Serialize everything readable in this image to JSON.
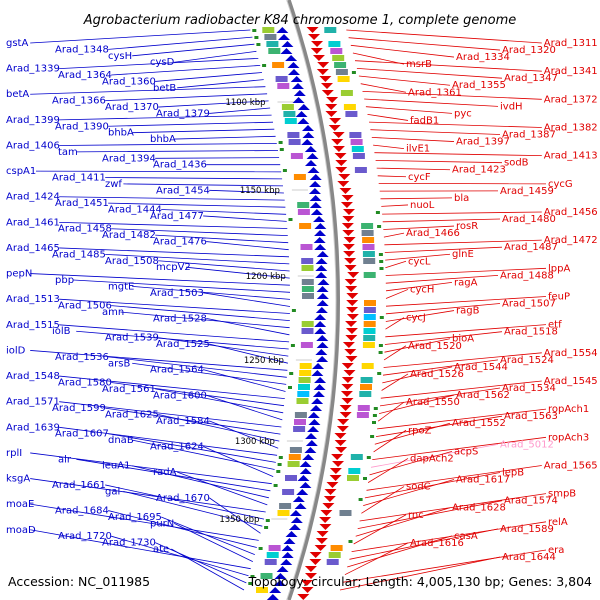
{
  "title": "Agrobacterium radiobacter K84 chromosome 1, complete genome",
  "footer": {
    "accession": "Accession: NC_011985",
    "summary": "Topology: circular; Length: 4,005,130 bp; Genes: 3,804"
  },
  "colors": {
    "minus_strand": "#0000cc",
    "plus_strand": "#e00000",
    "highlight_gene": "#ff99cc",
    "backbone": "#888888",
    "marker": "#228b22"
  },
  "ticks": [
    "1100 kbp",
    "1150 kbp",
    "1200 kbp",
    "1250 kbp",
    "1300 kbp",
    "1350 kbp"
  ],
  "left_labels": [
    "gstA",
    "Arad_1348",
    "cysH",
    "cysD",
    "Arad_1339",
    "Arad_1364",
    "Arad_1360",
    "betB",
    "betA",
    "Arad_1366",
    "Arad_1370",
    "Arad_1379",
    "Arad_1399",
    "Arad_1390",
    "bhbA",
    "bhbA",
    "Arad_1406",
    "tam",
    "Arad_1394",
    "Arad_1436",
    "cspA1",
    "Arad_1411",
    "zwf",
    "Arad_1454",
    "Arad_1424",
    "Arad_1451",
    "Arad_1444",
    "Arad_1477",
    "Arad_1461",
    "Arad_1458",
    "Arad_1482",
    "Arad_1476",
    "Arad_1465",
    "Arad_1485",
    "Arad_1508",
    "mcpV2",
    "pepN",
    "pbp",
    "mgtE",
    "Arad_1503",
    "Arad_1513",
    "Arad_1506",
    "amn",
    "Arad_1528",
    "Arad_1515",
    "iolB",
    "Arad_1539",
    "Arad_1525",
    "iolD",
    "Arad_1536",
    "arsB",
    "Arad_1564",
    "Arad_1548",
    "Arad_1580",
    "Arad_1561",
    "Arad_1600",
    "Arad_1571",
    "Arad_1599",
    "Arad_1625",
    "Arad_1584",
    "Arad_1639",
    "Arad_1607",
    "dnaB",
    "Arad_1624",
    "rplI",
    "alr",
    "leuA1",
    "radA",
    "ksgA",
    "Arad_1661",
    "gal",
    "Arad_1670",
    "moaE",
    "Arad_1684",
    "Arad_1695",
    "purN",
    "moaD",
    "Arad_1720",
    "Arad_1730",
    "ate"
  ],
  "right_labels": [
    "Arad_1311",
    "Arad_1320",
    "Arad_1334",
    "msrB",
    "Arad_1341",
    "Arad_1347",
    "Arad_1355",
    "Arad_1361",
    "Arad_1372",
    "ivdH",
    "pyc",
    "fadB1",
    "Arad_1382",
    "Arad_1387",
    "Arad_1397",
    "ilvE1",
    "Arad_1413",
    "sodB",
    "Arad_1423",
    "cycF",
    "cycG",
    "Arad_1459",
    "bla",
    "nuoL",
    "Arad_1456",
    "Arad_1480",
    "rosR",
    "Arad_1466",
    "Arad_1472",
    "Arad_1487",
    "glnE",
    "cycL",
    "lppA",
    "Arad_1488",
    "ragA",
    "cycH",
    "feuP",
    "Arad_1507",
    "ragB",
    "cycJ",
    "etf",
    "Arad_1518",
    "bioA",
    "Arad_1520",
    "Arad_1554",
    "Arad_1524",
    "Arad_1544",
    "Arad_1526",
    "Arad_1545",
    "Arad_1534",
    "Arad_1562",
    "Arad_1550",
    "ropAch1",
    "Arad_1563",
    "Arad_1552",
    "rpoZ",
    "ropAch3",
    "Arad_5012",
    "acpS",
    "dapAch2",
    "Arad_1565",
    "lepB",
    "Arad_1617",
    "sodC",
    "smpB",
    "Arad_1574",
    "Arad_1628",
    "rnc",
    "relA",
    "Arad_1589",
    "casA",
    "Arad_1616",
    "era",
    "Arad_1644"
  ]
}
